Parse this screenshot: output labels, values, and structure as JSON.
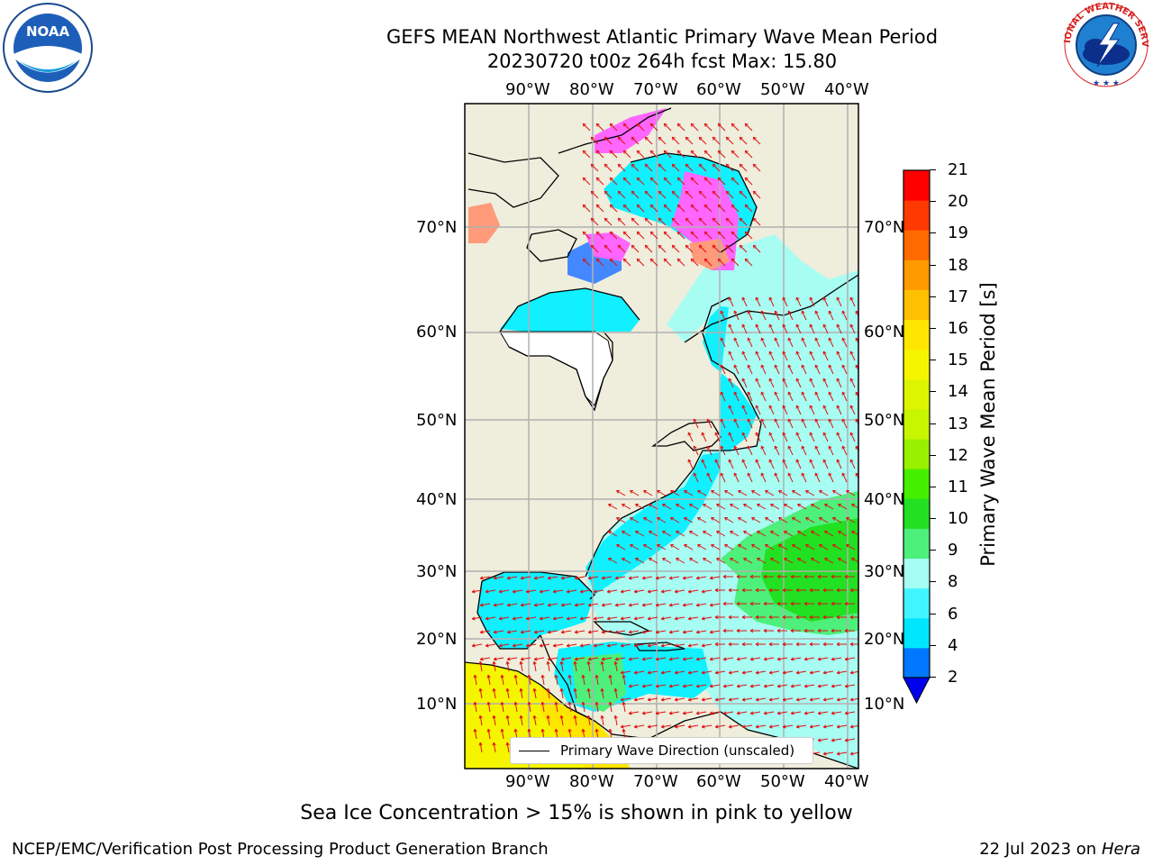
{
  "header": {
    "title_line1": "GEFS MEAN Northwest Atlantic Primary Wave Mean Period",
    "title_line2": "20230720 t00z 264h fcst   Max: 15.80"
  },
  "logos": {
    "noaa_text": "NOAA",
    "noaa_ring": "NATIONAL OCEANIC AND ATMOSPHERIC ADMINISTRATION · U.S. DEPARTMENT OF COMMERCE",
    "nws_ring": "NATIONAL WEATHER SERVICE"
  },
  "map": {
    "lon_labels": [
      "90°W",
      "80°W",
      "70°W",
      "60°W",
      "50°W",
      "40°W"
    ],
    "lat_labels": [
      "70°N",
      "60°N",
      "50°N",
      "40°N",
      "30°N",
      "20°N",
      "10°N"
    ],
    "legend_label": "Primary Wave Direction (unscaled)",
    "land_color": "#efeddc",
    "ocean_color": "#a8fdf3",
    "arrow_color": "#e01010"
  },
  "colorbar": {
    "label": "Primary Wave Mean Period [s]",
    "ticks": [
      "2",
      "4",
      "6",
      "8",
      "9",
      "10",
      "11",
      "12",
      "13",
      "14",
      "15",
      "16",
      "17",
      "18",
      "19",
      "20",
      "21"
    ],
    "colors": [
      "#0077ff",
      "#00e6ff",
      "#40f5ff",
      "#a6fdf3",
      "#4df07a",
      "#22e022",
      "#44f000",
      "#99f000",
      "#c8f500",
      "#ddf500",
      "#f5f500",
      "#ffe600",
      "#ffc000",
      "#ff9a00",
      "#ff6a00",
      "#ff3a00",
      "#ff0000"
    ],
    "extend_color": "#0000ee"
  },
  "footer": {
    "sea_ice_note": "Sea Ice Concentration > 15% is shown in pink to yellow",
    "credit": "NCEP/EMC/Verification Post Processing Product Generation Branch",
    "date_prefix": "22 Jul 2023 on ",
    "machine": "Hera"
  }
}
